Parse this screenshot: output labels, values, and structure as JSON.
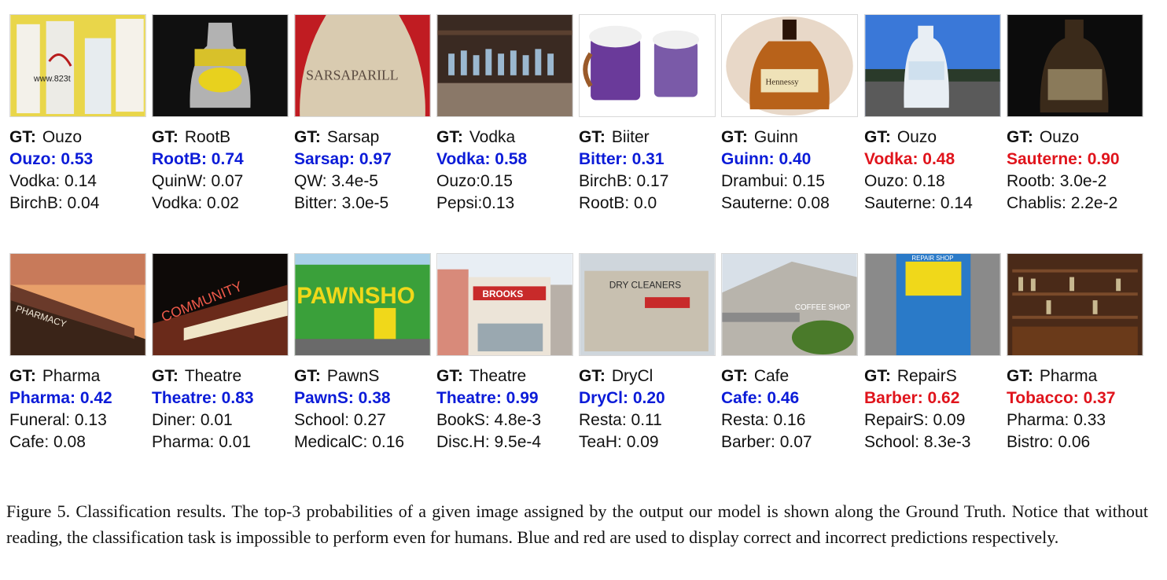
{
  "rows": [
    [
      {
        "gt": "Ouzo",
        "pred": "Ouzo: 0.53",
        "correct": true,
        "alts": [
          "Vodka: 0.14",
          "BirchB: 0.04"
        ],
        "image_text": "www.823t"
      },
      {
        "gt": "RootB",
        "pred": "RootB: 0.74",
        "correct": true,
        "alts": [
          "QuinW: 0.07",
          "Vodka: 0.02"
        ],
        "image_text": ""
      },
      {
        "gt": "Sarsap",
        "pred": "Sarsap: 0.97",
        "correct": true,
        "alts": [
          "QW: 3.4e-5",
          "Bitter: 3.0e-5"
        ],
        "image_text": "SARSAPARILL"
      },
      {
        "gt": "Vodka",
        "pred": "Vodka: 0.58",
        "correct": true,
        "alts": [
          "Ouzo:0.15",
          "Pepsi:0.13"
        ],
        "image_text": ""
      },
      {
        "gt": "Biiter",
        "pred": "Bitter: 0.31",
        "correct": true,
        "alts": [
          "BirchB: 0.17",
          "RootB: 0.0"
        ],
        "image_text": ""
      },
      {
        "gt": "Guinn",
        "pred": "Guinn: 0.40",
        "correct": true,
        "alts": [
          "Drambui: 0.15",
          "Sauterne: 0.08"
        ],
        "image_text": "Hennessy"
      },
      {
        "gt": "Ouzo",
        "pred": "Vodka: 0.48",
        "correct": false,
        "alts": [
          "Ouzo: 0.18",
          "Sauterne: 0.14"
        ],
        "image_text": ""
      },
      {
        "gt": "Ouzo",
        "pred": "Sauterne: 0.90",
        "correct": false,
        "alts": [
          "Rootb: 3.0e-2",
          "Chablis: 2.2e-2"
        ],
        "image_text": ""
      }
    ],
    [
      {
        "gt": "Pharma",
        "pred": "Pharma: 0.42",
        "correct": true,
        "alts": [
          "Funeral: 0.13",
          "Cafe: 0.08"
        ],
        "image_text": "PHARMACY"
      },
      {
        "gt": "Theatre",
        "pred": "Theatre: 0.83",
        "correct": true,
        "alts": [
          "Diner: 0.01",
          "Pharma: 0.01"
        ],
        "image_text": "COMMUNITY"
      },
      {
        "gt": "PawnS",
        "pred": "PawnS: 0.38",
        "correct": true,
        "alts": [
          "School: 0.27",
          "MedicalC: 0.16"
        ],
        "image_text": "PAWNSHO"
      },
      {
        "gt": "Theatre",
        "pred": "Theatre: 0.99",
        "correct": true,
        "alts": [
          "BookS: 4.8e-3",
          "Disc.H: 9.5e-4"
        ],
        "image_text": "BROOKS"
      },
      {
        "gt": "DryCl",
        "pred": "DryCl: 0.20",
        "correct": true,
        "alts": [
          "Resta: 0.11",
          "TeaH: 0.09"
        ],
        "image_text": "DRY CLEANERS"
      },
      {
        "gt": "Cafe",
        "pred": "Cafe: 0.46",
        "correct": true,
        "alts": [
          "Resta: 0.16",
          "Barber: 0.07"
        ],
        "image_text": "COFFEE SHOP"
      },
      {
        "gt": "RepairS",
        "pred": "Barber: 0.62",
        "correct": false,
        "alts": [
          "RepairS: 0.09",
          "School: 8.3e-3"
        ],
        "image_text": "REPAIR SHOP"
      },
      {
        "gt": "Pharma",
        "pred": "Tobacco: 0.37",
        "correct": false,
        "alts": [
          "Pharma: 0.33",
          "Bistro: 0.06"
        ],
        "image_text": ""
      }
    ]
  ],
  "gt_prefix": "GT:",
  "colors": {
    "correct": "#0b1bd8",
    "incorrect": "#e0141c"
  },
  "caption": "Figure 5. Classification results.  The top-3 probabilities of a given image assigned by the output our model is shown along the Ground Truth.  Notice that without reading, the classification task is impossible to perform even for humans.  Blue and red are used to display correct and incorrect predictions respectively."
}
